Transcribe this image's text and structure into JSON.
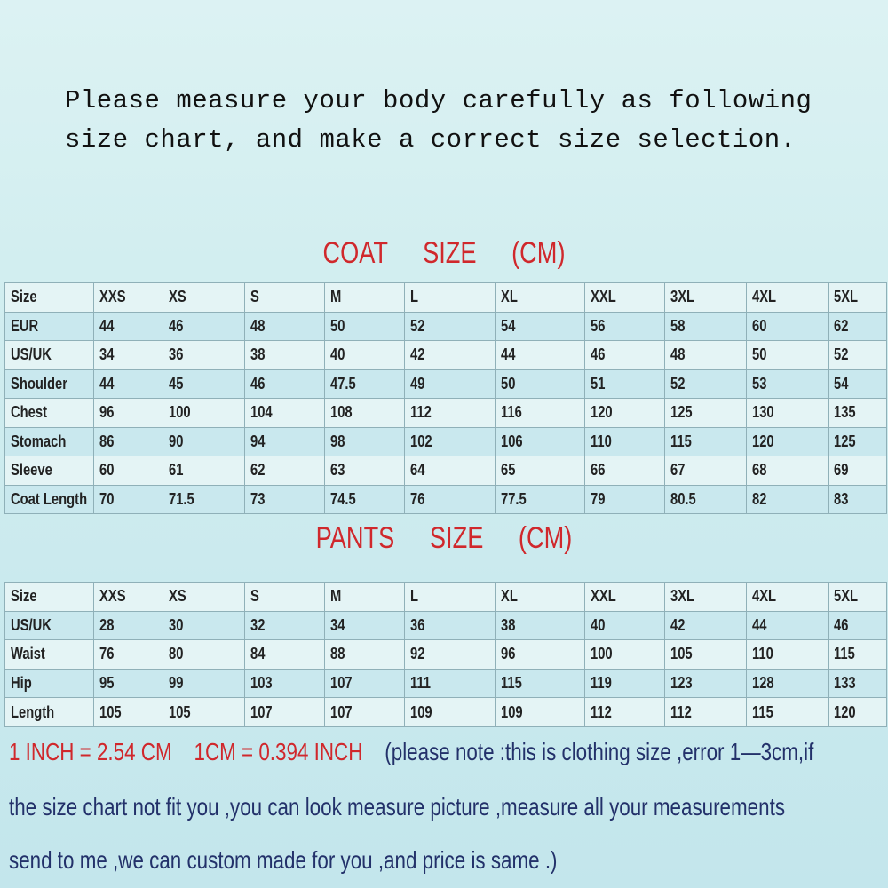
{
  "intro": [
    "Please measure your body carefully as following",
    "size chart, and make a correct size selection."
  ],
  "coat": {
    "title": "COAT SIZE (CM)",
    "rows": [
      [
        "Size",
        "XXS",
        "XS",
        "S",
        "M",
        "L",
        "XL",
        "XXL",
        "3XL",
        "4XL",
        "5XL"
      ],
      [
        "EUR",
        44,
        46,
        48,
        50,
        52,
        54,
        56,
        58,
        60,
        62
      ],
      [
        "US/UK",
        34,
        36,
        38,
        40,
        42,
        44,
        46,
        48,
        50,
        52
      ],
      [
        "Shoulder",
        44,
        45,
        46,
        47.5,
        49,
        50,
        51,
        52,
        53,
        54
      ],
      [
        "Chest",
        96,
        100,
        104,
        108,
        112,
        116,
        120,
        125,
        130,
        135
      ],
      [
        "Stomach",
        86,
        90,
        94,
        98,
        102,
        106,
        110,
        115,
        120,
        125
      ],
      [
        "Sleeve",
        60,
        61,
        62,
        63,
        64,
        65,
        66,
        67,
        68,
        69
      ],
      [
        "Coat Length",
        70,
        71.5,
        73,
        74.5,
        76,
        77.5,
        79,
        80.5,
        82,
        83
      ]
    ]
  },
  "pants": {
    "title": "PANTS SIZE (CM)",
    "rows": [
      [
        "Size",
        "XXS",
        "XS",
        "S",
        "M",
        "L",
        "XL",
        "XXL",
        "3XL",
        "4XL",
        "5XL"
      ],
      [
        "US/UK",
        28,
        30,
        32,
        34,
        36,
        38,
        40,
        42,
        44,
        46
      ],
      [
        "Waist",
        76,
        80,
        84,
        88,
        92,
        96,
        100,
        105,
        110,
        115
      ],
      [
        "Hip",
        95,
        99,
        103,
        107,
        111,
        115,
        119,
        123,
        128,
        133
      ],
      [
        "Length",
        105,
        105,
        107,
        107,
        109,
        109,
        112,
        112,
        115,
        120
      ]
    ]
  },
  "notes": {
    "conversions": [
      "1 INCH = 2.54 CM",
      "1CM = 0.394 INCH"
    ],
    "lines": [
      "(please note :this is clothing size ,error 1—3cm,if",
      "the size chart not fit you ,you can look measure picture ,measure all your measurements",
      "send to me ,we can custom made for you ,and price is same .)"
    ]
  }
}
